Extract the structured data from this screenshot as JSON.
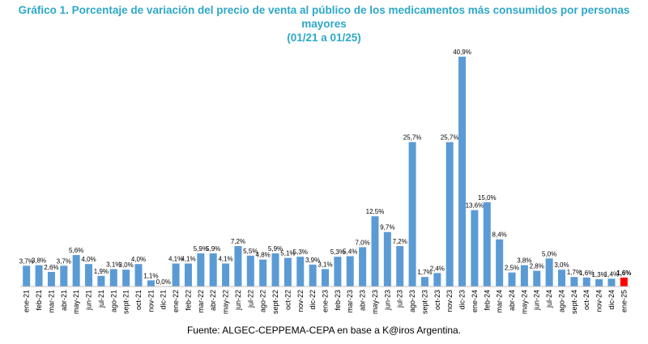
{
  "title_line1": "Gráfico 1. Porcentaje de variación del precio de venta al público de los medicamentos más consumidos por personas mayores",
  "title_line2": "(01/21 a 01/25)",
  "source": "Fuente: ALGEC-CEPPEMA-CEPA en base a K@iros Argentina.",
  "colors": {
    "bar": "#5b9bd5",
    "highlight": "#ff0000",
    "title": "#2ea8c8",
    "axis": "#000000"
  },
  "chart_data": {
    "type": "bar",
    "title": "Gráfico 1. Porcentaje de variación del precio de venta al público de los medicamentos más consumidos por personas mayores (01/21 a 01/25)",
    "xlabel": "",
    "ylabel": "",
    "ylim": [
      0,
      40.9
    ],
    "grid": false,
    "legend": "none",
    "categories": [
      "ene-21",
      "feb-21",
      "mar-21",
      "abr-21",
      "may-21",
      "jun-21",
      "jul-21",
      "ago-21",
      "sept-21",
      "oct-21",
      "nov-21",
      "dic-21",
      "ene-22",
      "feb-22",
      "mar-22",
      "abr-22",
      "may-22",
      "jun-22",
      "jul-22",
      "ago-22",
      "sept-22",
      "oct-22",
      "nov-22",
      "dic-22",
      "ene-23",
      "feb-23",
      "mar-23",
      "abr-23",
      "may-23",
      "jun-23",
      "jul-23",
      "ago-23",
      "sept-23",
      "oct-23",
      "nov-23",
      "dic-23",
      "ene-24",
      "feb-24",
      "mar-24",
      "abr-24",
      "may-24",
      "jun-24",
      "jul-24",
      "ago-24",
      "sept-24",
      "oct-24",
      "nov-24",
      "dic-24",
      "ene-25"
    ],
    "values": [
      3.7,
      3.8,
      2.6,
      3.7,
      5.6,
      4.0,
      1.9,
      3.1,
      3.0,
      4.0,
      1.1,
      0.0,
      4.1,
      4.1,
      5.9,
      5.9,
      4.1,
      7.2,
      5.5,
      4.8,
      5.9,
      5.1,
      5.3,
      3.9,
      3.1,
      5.3,
      5.4,
      7.0,
      12.5,
      9.7,
      7.2,
      25.7,
      1.7,
      2.4,
      25.7,
      40.9,
      13.6,
      15.0,
      8.4,
      2.5,
      3.8,
      2.8,
      5.0,
      3.0,
      1.7,
      1.6,
      1.3,
      1.4,
      1.6
    ],
    "data_labels": [
      "3,7%",
      "3,8%",
      "2,6%",
      "3,7%",
      "5,6%",
      "4,0%",
      "1,9%",
      "3,1%",
      "3,0%",
      "4,0%",
      "1,1%",
      "0,0%",
      "4,1%",
      "4,1%",
      "5,9%",
      "5,9%",
      "4,1%",
      "7,2%",
      "5,5%",
      "4,8%",
      "5,9%",
      "5,1%",
      "5,3%",
      "3,9%",
      "3,1%",
      "5,3%",
      "5,4%",
      "7,0%",
      "12,5%",
      "9,7%",
      "7,2%",
      "25,7%",
      "1,7%",
      "2,4%",
      "25,7%",
      "40,9%",
      "13,6%",
      "15,0%",
      "8,4%",
      "2,5%",
      "3,8%",
      "2,8%",
      "5,0%",
      "3,0%",
      "1,7%",
      "1,6%",
      "1,3%",
      "1,4%",
      "1,6%"
    ],
    "highlight_index": 48
  }
}
